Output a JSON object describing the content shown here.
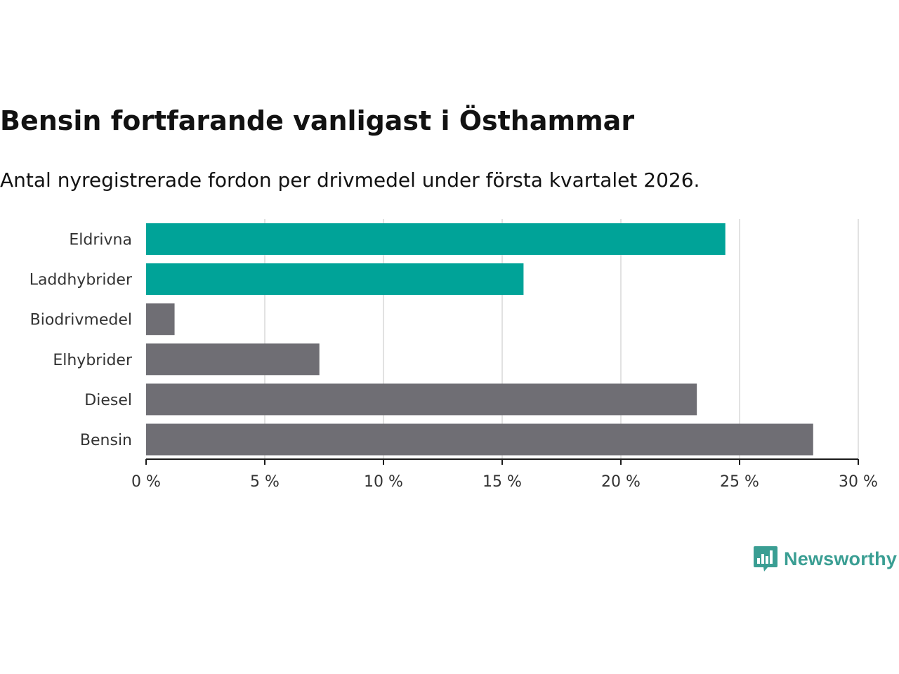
{
  "title": "Bensin fortfarande vanligast i Östhammar",
  "subtitle": "Antal nyregistrerade fordon per drivmedel under första kvartalet 2026.",
  "brand": {
    "name": "Newsworthy",
    "color": "#3a9e93",
    "icon": "bar-chart-speech-icon"
  },
  "colors": {
    "highlight": "#00a398",
    "default": "#6f6e74",
    "grid": "#d9d9d9",
    "axis": "#1a1a1a"
  },
  "chart_data": {
    "type": "bar",
    "orientation": "horizontal",
    "categories": [
      "Eldrivna",
      "Laddhybrider",
      "Biodrivmedel",
      "Elhybrider",
      "Diesel",
      "Bensin"
    ],
    "values": [
      24.4,
      15.9,
      1.2,
      7.3,
      23.2,
      28.1
    ],
    "highlighted": [
      true,
      true,
      false,
      false,
      false,
      false
    ],
    "xlim": [
      0,
      30
    ],
    "xticks": [
      0,
      5,
      10,
      15,
      20,
      25,
      30
    ],
    "xtick_labels": [
      "0 %",
      "5 %",
      "10 %",
      "15 %",
      "20 %",
      "25 %",
      "30 %"
    ],
    "unit": "%",
    "grid": "vertical",
    "xlabel": "",
    "ylabel": ""
  }
}
